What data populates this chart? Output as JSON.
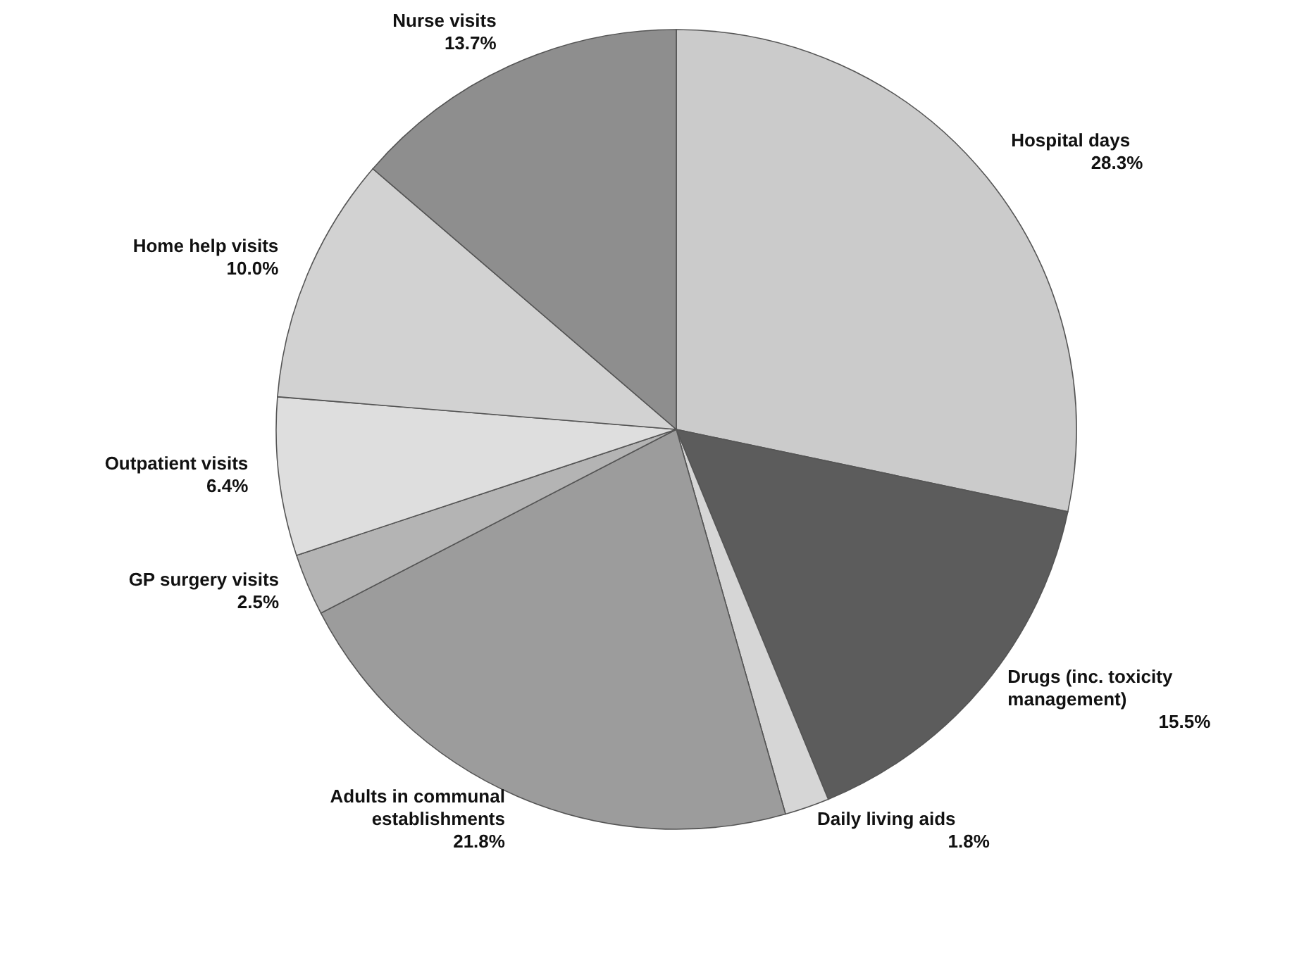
{
  "chart_data": {
    "type": "pie",
    "categories": [
      "Hospital days",
      "Drugs (inc. toxicity management)",
      "Daily living aids",
      "Adults in communal establishments",
      "GP surgery visits",
      "Outpatient visits",
      "Home help visits",
      "Nurse visits"
    ],
    "values": [
      28.3,
      15.5,
      1.8,
      21.8,
      2.5,
      6.4,
      10.0,
      13.7
    ],
    "value_labels": [
      "28.3%",
      "15.5%",
      "1.8%",
      "21.8%",
      "2.5%",
      "6.4%",
      "10.0%",
      "13.7%"
    ],
    "colors": [
      "#cbcbcb",
      "#5c5c5c",
      "#d6d6d6",
      "#9c9c9c",
      "#b4b4b4",
      "#dedede",
      "#d2d2d2",
      "#8e8e8e"
    ],
    "legend": false
  }
}
